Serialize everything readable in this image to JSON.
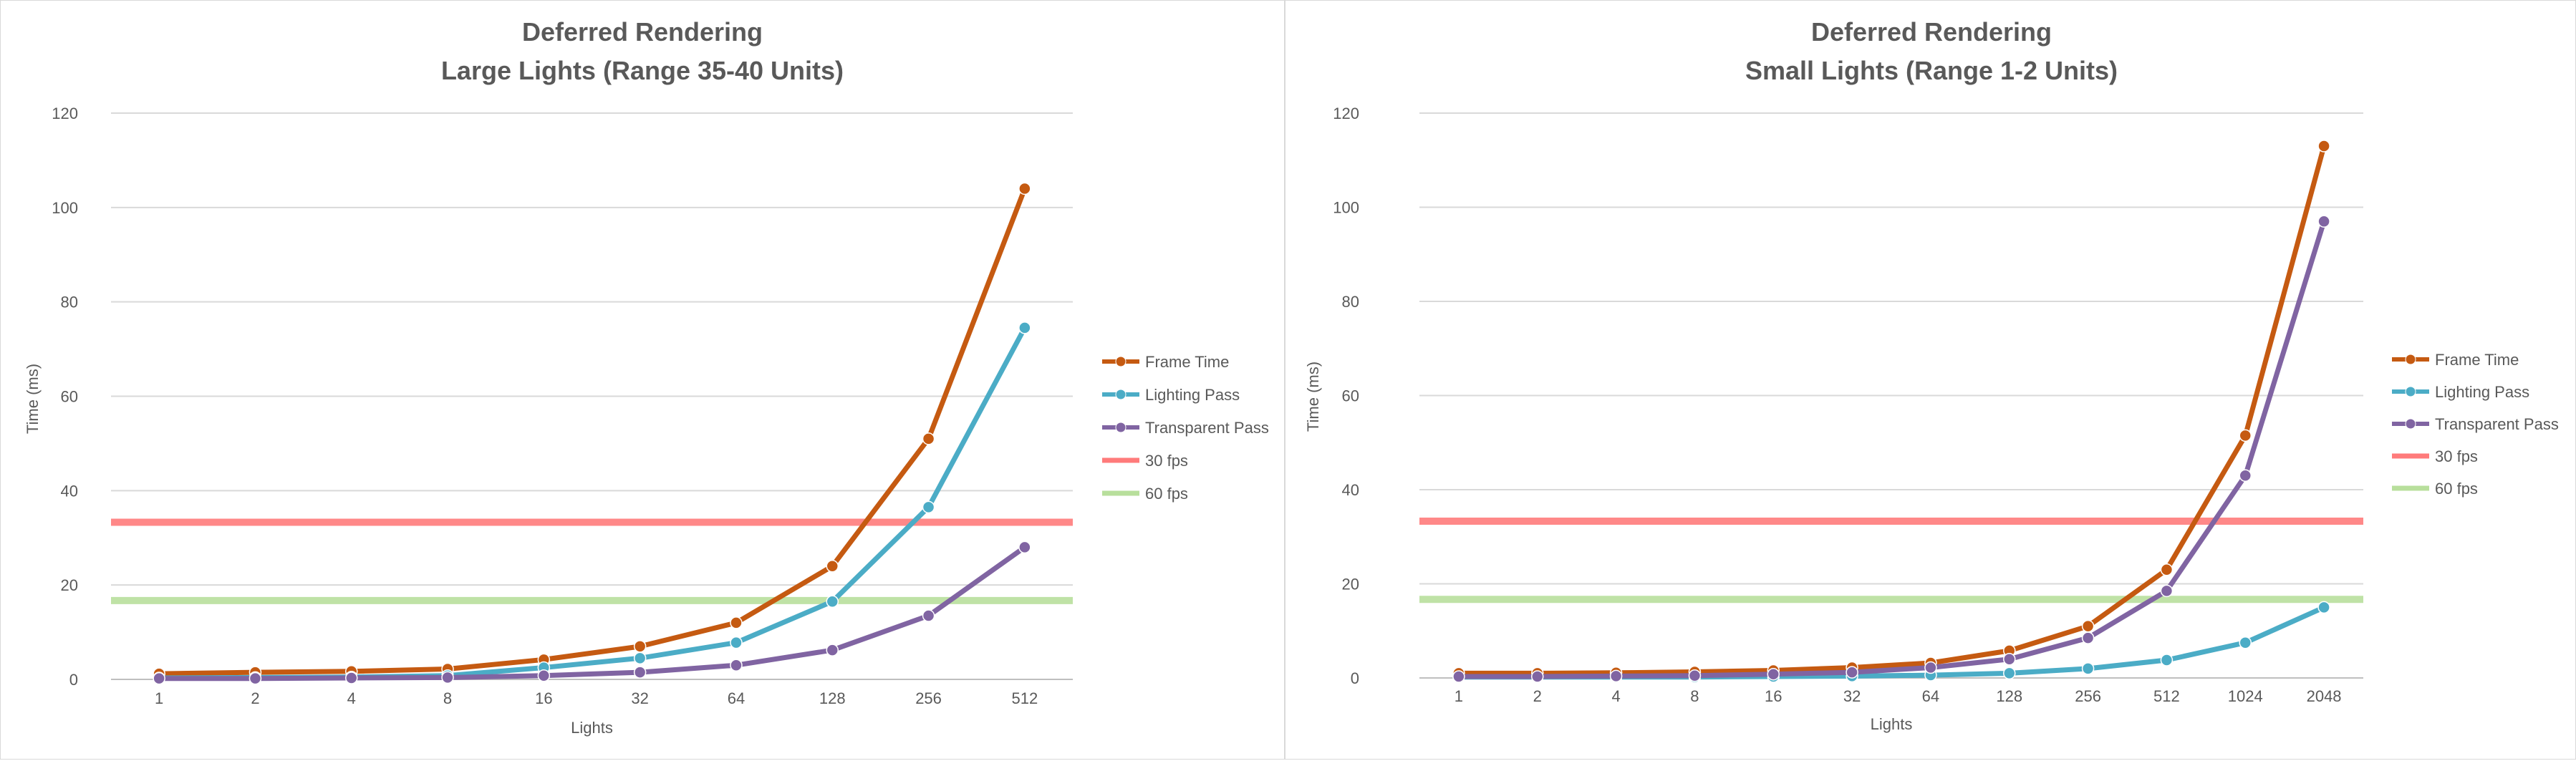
{
  "chart_data": [
    {
      "type": "line",
      "title": "Deferred Rendering",
      "subtitle": "Large Lights (Range 35-40 Units)",
      "xlabel": "Lights",
      "ylabel": "Time (ms)",
      "ylim": [
        0,
        120
      ],
      "yticks": [
        0,
        20,
        40,
        60,
        80,
        100,
        120
      ],
      "grid": true,
      "legend": "right",
      "categories": [
        "1",
        "2",
        "4",
        "8",
        "16",
        "32",
        "64",
        "128",
        "256",
        "512"
      ],
      "series": [
        {
          "name": "Frame Time",
          "color": "#c55a11",
          "values": [
            1.2,
            1.5,
            1.7,
            2.2,
            4.2,
            7.0,
            12.0,
            24.0,
            51.0,
            104.0
          ]
        },
        {
          "name": "Lighting Pass",
          "color": "#4bacc6",
          "values": [
            0.3,
            0.4,
            0.5,
            0.8,
            2.5,
            4.5,
            7.8,
            16.5,
            36.5,
            74.5
          ]
        },
        {
          "name": "Transparent Pass",
          "color": "#8064a2",
          "values": [
            0.2,
            0.2,
            0.3,
            0.4,
            0.8,
            1.5,
            3.0,
            6.2,
            13.5,
            28.0
          ]
        }
      ],
      "reference_lines": [
        {
          "name": "30 fps",
          "color": "#ff7b7b",
          "value": 33.3
        },
        {
          "name": "60 fps",
          "color": "#b8df9c",
          "value": 16.7
        }
      ]
    },
    {
      "type": "line",
      "title": "Deferred Rendering",
      "subtitle": "Small Lights (Range 1-2 Units)",
      "xlabel": "Lights",
      "ylabel": "Time (ms)",
      "ylim": [
        0,
        120
      ],
      "yticks": [
        0,
        20,
        40,
        60,
        80,
        100,
        120
      ],
      "grid": true,
      "legend": "right",
      "categories": [
        "1",
        "2",
        "4",
        "8",
        "16",
        "32",
        "64",
        "128",
        "256",
        "512",
        "1024",
        "2048"
      ],
      "series": [
        {
          "name": "Frame Time",
          "color": "#c55a11",
          "values": [
            1.0,
            1.0,
            1.1,
            1.3,
            1.6,
            2.2,
            3.2,
            5.8,
            11.0,
            23.0,
            51.5,
            113.0
          ]
        },
        {
          "name": "Lighting Pass",
          "color": "#4bacc6",
          "values": [
            0.2,
            0.2,
            0.2,
            0.2,
            0.3,
            0.4,
            0.6,
            1.0,
            2.0,
            3.8,
            7.5,
            15.0
          ]
        },
        {
          "name": "Transparent Pass",
          "color": "#8064a2",
          "values": [
            0.3,
            0.3,
            0.4,
            0.5,
            0.8,
            1.2,
            2.2,
            4.0,
            8.5,
            18.5,
            43.0,
            97.0
          ]
        }
      ],
      "reference_lines": [
        {
          "name": "30 fps",
          "color": "#ff7b7b",
          "value": 33.3
        },
        {
          "name": "60 fps",
          "color": "#b8df9c",
          "value": 16.7
        }
      ]
    }
  ]
}
